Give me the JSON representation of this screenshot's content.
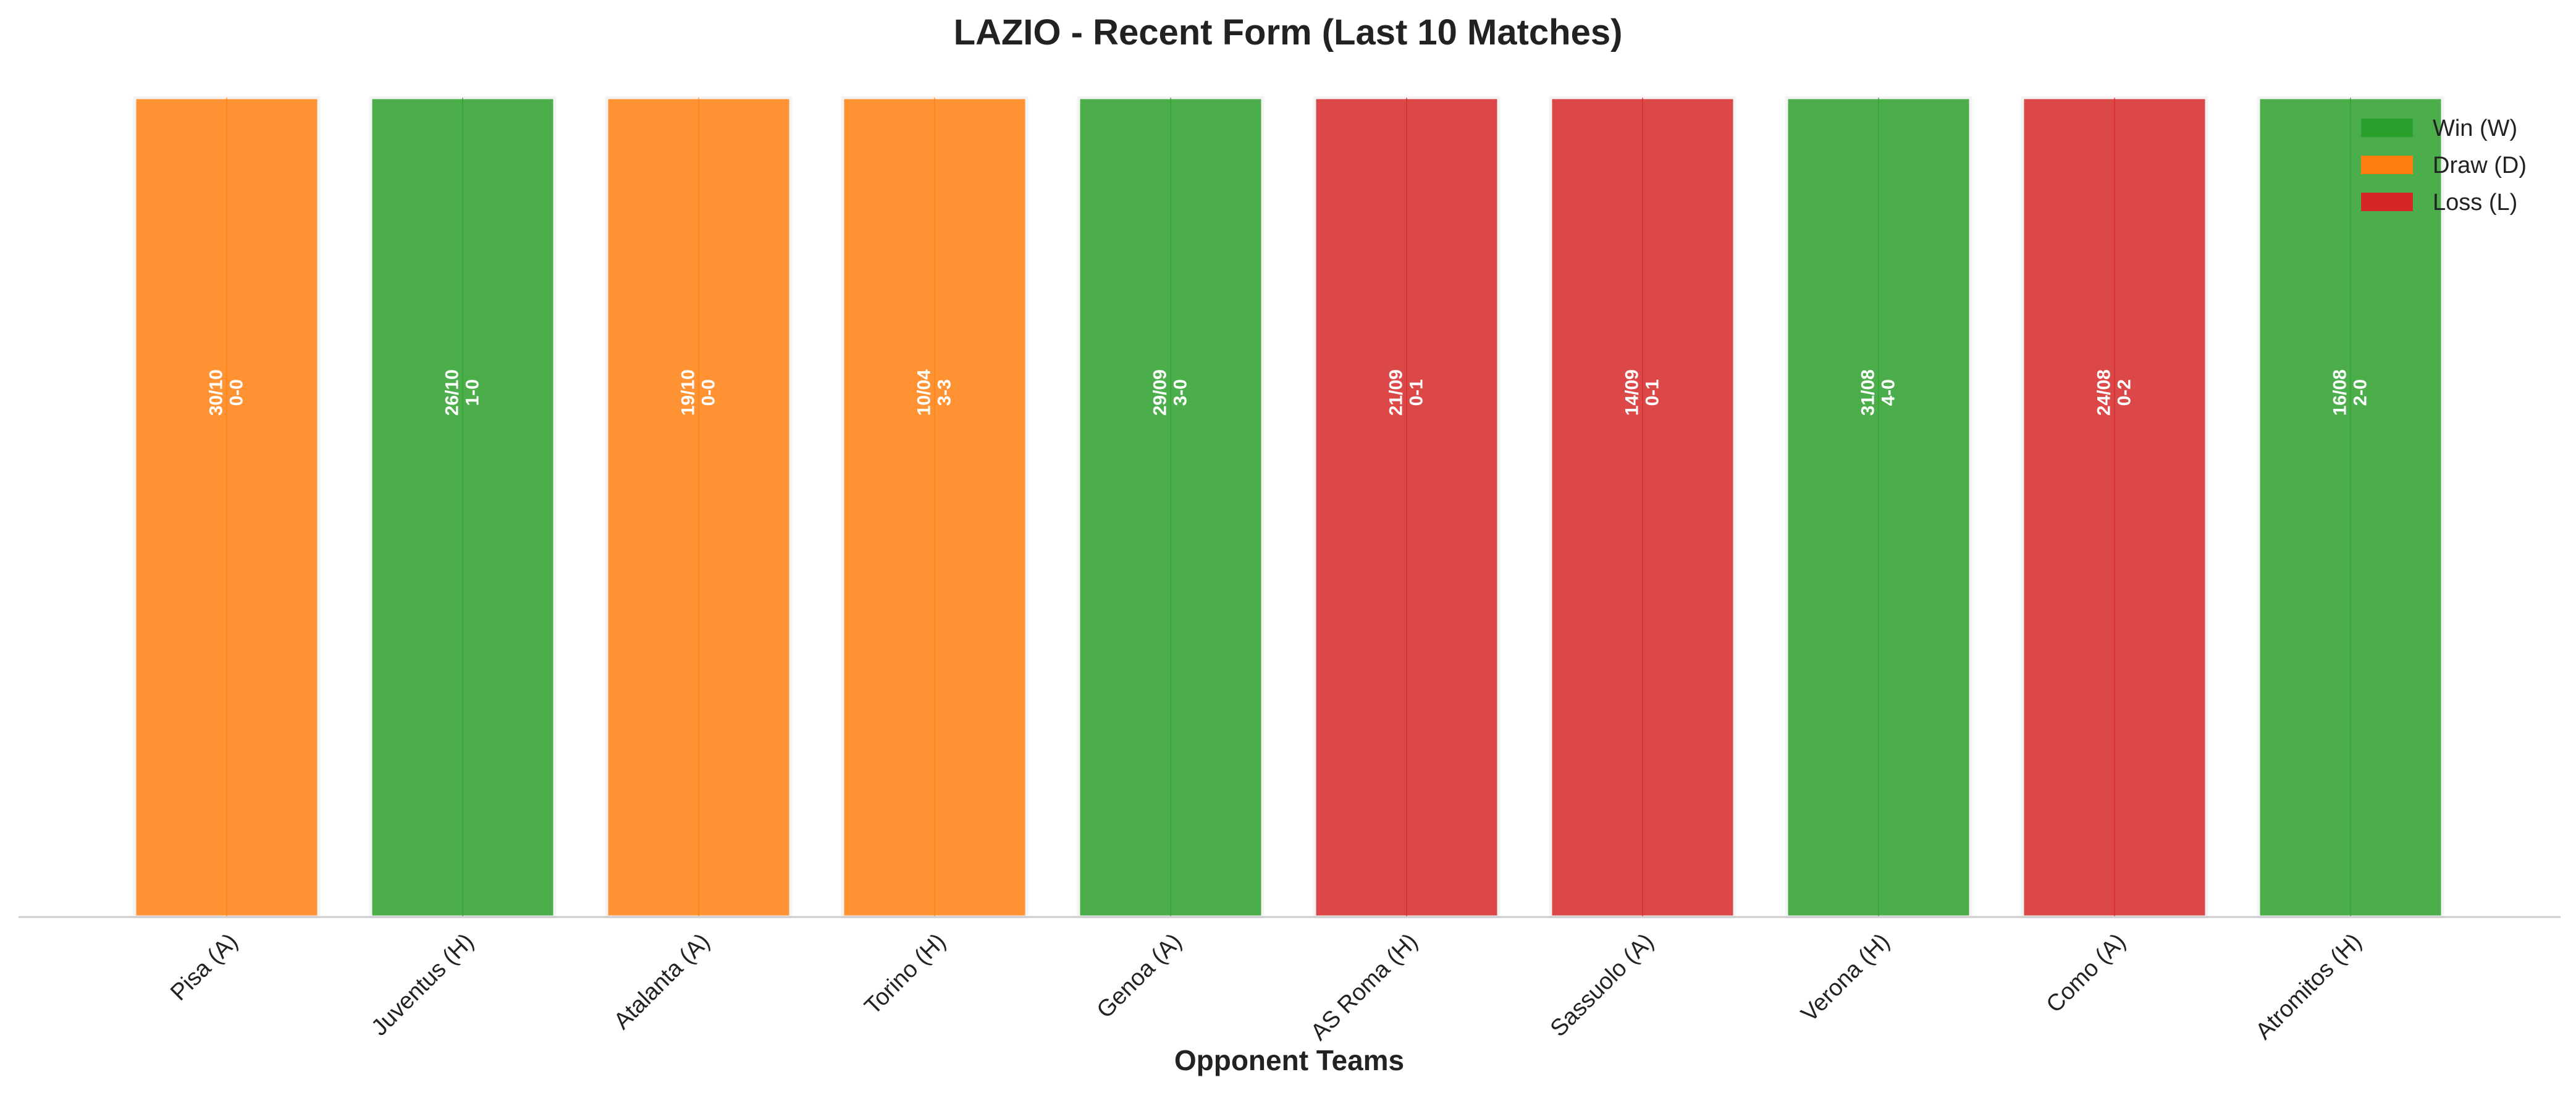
{
  "chart_data": {
    "type": "bar",
    "title": "LAZIO - Recent Form (Last 10 Matches)",
    "xlabel": "Opponent Teams",
    "ylabel": "",
    "grid": false,
    "legend_placement": "top-right",
    "colors": {
      "W": "#2ca02c",
      "D": "#ff7f0e",
      "L": "#d62728"
    },
    "legend": [
      {
        "key": "W",
        "label": "Win (W)"
      },
      {
        "key": "D",
        "label": "Draw (D)"
      },
      {
        "key": "L",
        "label": "Loss (L)"
      }
    ],
    "categories": [
      "Pisa (A)",
      "Juventus (H)",
      "Atalanta (A)",
      "Torino (H)",
      "Genoa (A)",
      "AS Roma (H)",
      "Sassuolo (A)",
      "Verona (H)",
      "Como (A)",
      "Atromitos (H)"
    ],
    "values": [
      1,
      1,
      1,
      1,
      1,
      1,
      1,
      1,
      1,
      1
    ],
    "matches": [
      {
        "opponent": "Pisa (A)",
        "date": "30/10",
        "score": "0-0",
        "result": "D"
      },
      {
        "opponent": "Juventus (H)",
        "date": "26/10",
        "score": "1-0",
        "result": "W"
      },
      {
        "opponent": "Atalanta (A)",
        "date": "19/10",
        "score": "0-0",
        "result": "D"
      },
      {
        "opponent": "Torino (H)",
        "date": "10/04",
        "score": "3-3",
        "result": "D"
      },
      {
        "opponent": "Genoa (A)",
        "date": "29/09",
        "score": "3-0",
        "result": "W"
      },
      {
        "opponent": "AS Roma (H)",
        "date": "21/09",
        "score": "0-1",
        "result": "L"
      },
      {
        "opponent": "Sassuolo (A)",
        "date": "14/09",
        "score": "0-1",
        "result": "L"
      },
      {
        "opponent": "Verona (H)",
        "date": "31/08",
        "score": "4-0",
        "result": "W"
      },
      {
        "opponent": "Como (A)",
        "date": "24/08",
        "score": "0-2",
        "result": "L"
      },
      {
        "opponent": "Atromitos (H)",
        "date": "16/08",
        "score": "2-0",
        "result": "W"
      }
    ]
  }
}
